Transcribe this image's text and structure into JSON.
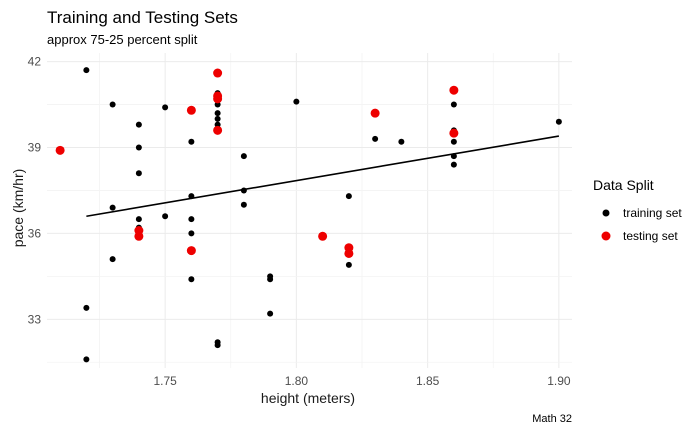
{
  "chart_data": {
    "type": "scatter",
    "title": "Training and Testing Sets",
    "subtitle": "approx 75-25 percent split",
    "xlabel": "height (meters)",
    "ylabel": "pace (km/hr)",
    "caption": "Math 32",
    "xlim": [
      1.705,
      1.905
    ],
    "ylim": [
      31.3,
      42.3
    ],
    "x_ticks": [
      "1.75",
      "1.80",
      "1.85",
      "1.90"
    ],
    "y_ticks": [
      "33",
      "36",
      "39",
      "42"
    ],
    "grid": true,
    "legend": {
      "title": "Data Split",
      "position": "right"
    },
    "series": [
      {
        "name": "training set",
        "color": "#000000",
        "points": [
          [
            1.72,
            41.7
          ],
          [
            1.72,
            33.4
          ],
          [
            1.72,
            31.6
          ],
          [
            1.73,
            40.5
          ],
          [
            1.73,
            36.9
          ],
          [
            1.73,
            35.1
          ],
          [
            1.74,
            39.8
          ],
          [
            1.74,
            39.0
          ],
          [
            1.74,
            38.1
          ],
          [
            1.74,
            36.5
          ],
          [
            1.74,
            36.2
          ],
          [
            1.75,
            40.4
          ],
          [
            1.75,
            36.6
          ],
          [
            1.76,
            39.2
          ],
          [
            1.76,
            37.3
          ],
          [
            1.76,
            36.5
          ],
          [
            1.76,
            36.0
          ],
          [
            1.76,
            34.4
          ],
          [
            1.77,
            40.9
          ],
          [
            1.77,
            40.5
          ],
          [
            1.77,
            40.2
          ],
          [
            1.77,
            40.0
          ],
          [
            1.77,
            39.8
          ],
          [
            1.77,
            32.2
          ],
          [
            1.77,
            32.1
          ],
          [
            1.78,
            38.7
          ],
          [
            1.78,
            37.5
          ],
          [
            1.78,
            37.0
          ],
          [
            1.79,
            34.5
          ],
          [
            1.79,
            34.4
          ],
          [
            1.79,
            33.2
          ],
          [
            1.8,
            40.6
          ],
          [
            1.82,
            37.3
          ],
          [
            1.82,
            34.9
          ],
          [
            1.83,
            39.3
          ],
          [
            1.84,
            39.2
          ],
          [
            1.86,
            40.5
          ],
          [
            1.86,
            39.6
          ],
          [
            1.86,
            39.2
          ],
          [
            1.86,
            38.7
          ],
          [
            1.86,
            38.4
          ],
          [
            1.9,
            39.9
          ]
        ]
      },
      {
        "name": "testing set",
        "color": "#ee0000",
        "points": [
          [
            1.71,
            38.9
          ],
          [
            1.74,
            36.1
          ],
          [
            1.74,
            35.9
          ],
          [
            1.76,
            40.3
          ],
          [
            1.76,
            35.4
          ],
          [
            1.77,
            41.6
          ],
          [
            1.77,
            40.8
          ],
          [
            1.77,
            40.7
          ],
          [
            1.77,
            39.6
          ],
          [
            1.81,
            35.9
          ],
          [
            1.82,
            35.5
          ],
          [
            1.82,
            35.3
          ],
          [
            1.83,
            40.2
          ],
          [
            1.86,
            41.0
          ],
          [
            1.86,
            39.5
          ]
        ]
      }
    ],
    "trend_line": {
      "color": "#000000",
      "x": [
        1.72,
        1.9
      ],
      "y": [
        36.6,
        39.4
      ]
    }
  }
}
